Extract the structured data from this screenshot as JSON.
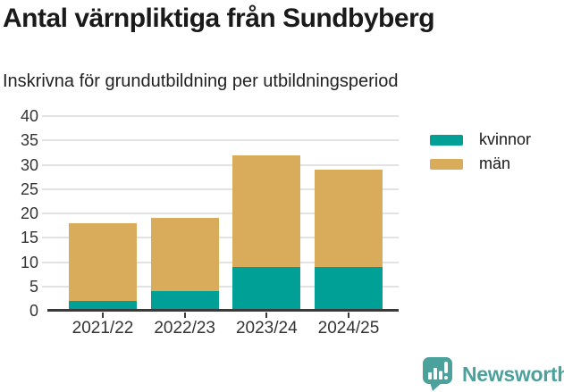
{
  "title": "Antal värnpliktiga från Sundbyberg",
  "subtitle": "Inskrivna för grundutbildning per utbildningsperiod",
  "chart_data": {
    "type": "bar",
    "stacked": true,
    "title": "Antal värnpliktiga från Sundbyberg",
    "subtitle": "Inskrivna för grundutbildning per utbildningsperiod",
    "categories": [
      "2021/22",
      "2022/23",
      "2023/24",
      "2024/25"
    ],
    "series": [
      {
        "name": "kvinnor",
        "color": "#00a096",
        "values": [
          2,
          4,
          9,
          9
        ]
      },
      {
        "name": "män",
        "color": "#d9ac5c",
        "values": [
          16,
          15,
          23,
          20
        ]
      }
    ],
    "totals": [
      18,
      19,
      32,
      29
    ],
    "xlabel": "",
    "ylabel": "",
    "ylim": [
      0,
      40
    ],
    "yticks": [
      0,
      5,
      10,
      15,
      20,
      25,
      30,
      35,
      40
    ],
    "grid": true,
    "legend_position": "right"
  },
  "legend": {
    "items": [
      {
        "label": "kvinnor",
        "color": "#00a096"
      },
      {
        "label": "män",
        "color": "#d9ac5c"
      }
    ]
  },
  "footer": {
    "brand": "Newsworthy",
    "brand_color": "#4ba19c",
    "logo_icon": "bar-chart-speech-bubble-icon"
  },
  "colors": {
    "kvinnor": "#00a096",
    "man": "#d9ac5c",
    "gridline": "#e2e2e2",
    "axis": "#3a3a3a",
    "text": "#333333"
  }
}
